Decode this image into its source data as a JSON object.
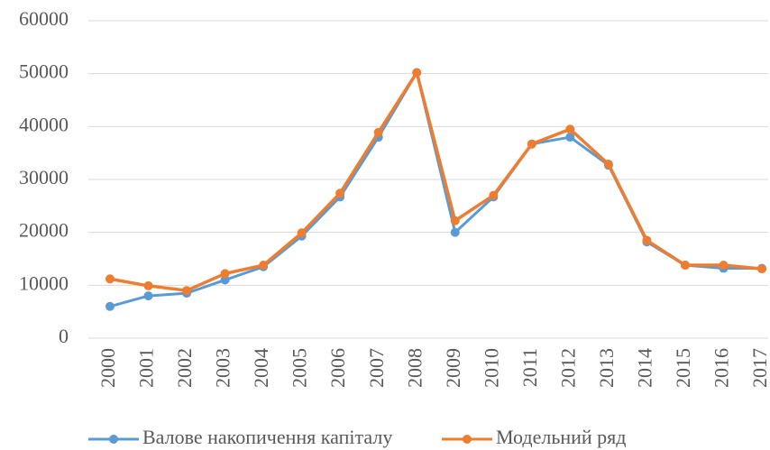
{
  "chart_data": {
    "type": "line",
    "categories": [
      "2000",
      "2001",
      "2002",
      "2003",
      "2004",
      "2005",
      "2006",
      "2007",
      "2008",
      "2009",
      "2010",
      "2011",
      "2012",
      "2013",
      "2014",
      "2015",
      "2016",
      "2017"
    ],
    "series": [
      {
        "name": "Валове накопичення  капіталу",
        "color": "#5b9bd5",
        "values": [
          6000,
          8000,
          8500,
          11000,
          13500,
          19300,
          26700,
          38000,
          50200,
          20000,
          26700,
          36700,
          38000,
          32700,
          18200,
          13800,
          13200,
          13200
        ]
      },
      {
        "name": "Модельний ряд",
        "color": "#ed7d31",
        "values": [
          11200,
          9900,
          9000,
          12200,
          13800,
          19900,
          27400,
          38900,
          50200,
          22200,
          27000,
          36700,
          39500,
          32900,
          18500,
          13800,
          13800,
          13100
        ]
      }
    ],
    "ylim": [
      0,
      60000
    ],
    "yticks": [
      0,
      10000,
      20000,
      30000,
      40000,
      50000,
      60000
    ],
    "grid": true
  }
}
